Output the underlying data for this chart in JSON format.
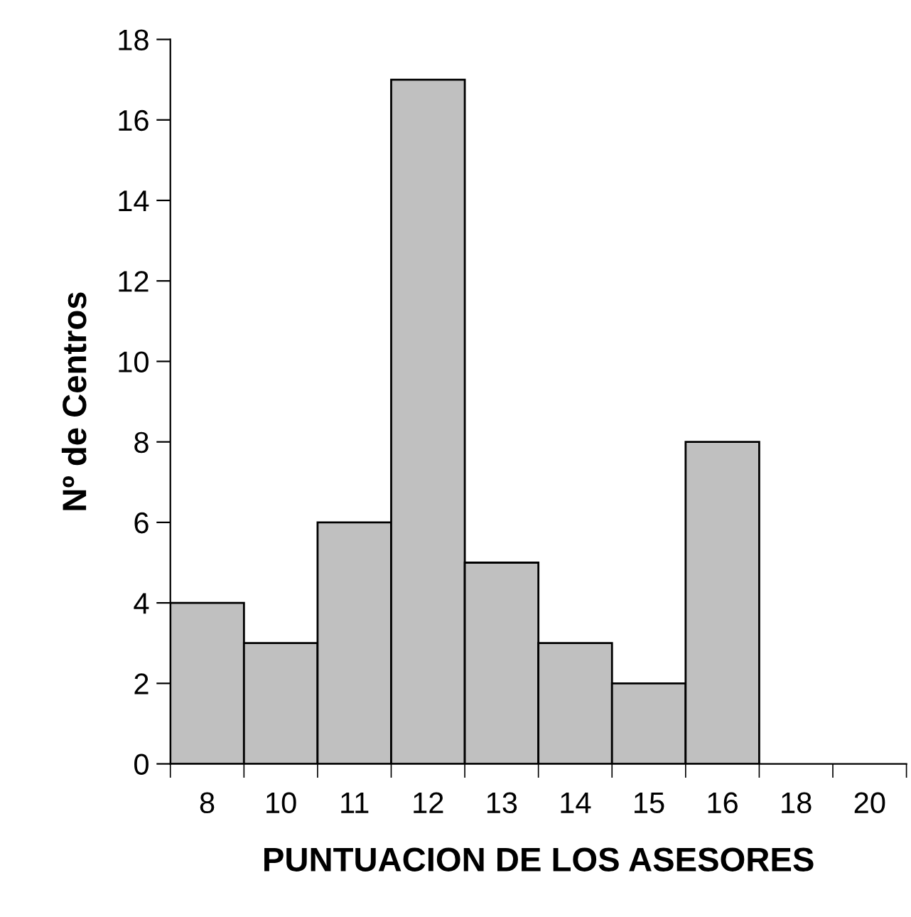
{
  "chart_data": {
    "type": "bar",
    "xlabel": "PUNTUACION DE LOS ASESORES",
    "ylabel": "Nº de Centros",
    "categories": [
      "8",
      "10",
      "11",
      "12",
      "13",
      "14",
      "15",
      "16",
      "18",
      "20"
    ],
    "values": [
      4,
      3,
      6,
      17,
      5,
      3,
      2,
      8,
      null,
      null
    ],
    "color": "#c0c0c0",
    "ylim": [
      0,
      18
    ],
    "yticks": [
      0,
      2,
      4,
      6,
      8,
      10,
      12,
      14,
      16,
      18
    ],
    "grid": false,
    "legend": false
  }
}
